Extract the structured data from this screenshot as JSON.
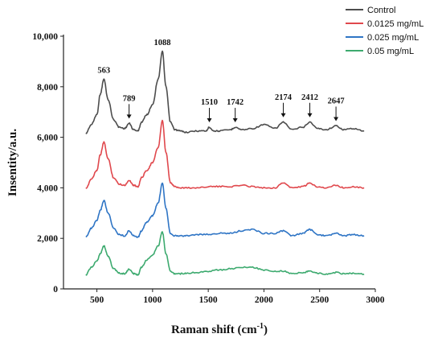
{
  "chart_data": {
    "type": "line",
    "title": "",
    "xlabel": "Raman shift (cm",
    "xlabel_sup": "-1",
    "xlabel_tail": ")",
    "ylabel": "Insentity/a.u.",
    "xlim": [
      200,
      3000
    ],
    "ylim": [
      0,
      10000
    ],
    "xticks": [
      500,
      1000,
      1500,
      2000,
      2500,
      3000
    ],
    "xtick_labels": [
      "500",
      "1000",
      "1500",
      "2000",
      "2500",
      "3000"
    ],
    "yticks": [
      0,
      2000,
      4000,
      6000,
      8000,
      10000
    ],
    "ytick_labels": [
      "0",
      "2,000",
      "4,000",
      "6,000",
      "8,000",
      "10,000"
    ],
    "grid": false,
    "legend_position": "top-right",
    "series": [
      {
        "name": "Control",
        "color": "#4d4d4d",
        "x": [
          400,
          450,
          500,
          530,
          563,
          600,
          650,
          700,
          750,
          789,
          830,
          870,
          900,
          950,
          1000,
          1050,
          1088,
          1120,
          1160,
          1200,
          1250,
          1300,
          1400,
          1480,
          1510,
          1550,
          1600,
          1700,
          1742,
          1800,
          1900,
          2000,
          2100,
          2174,
          2250,
          2350,
          2412,
          2480,
          2560,
          2647,
          2720,
          2800,
          2900
        ],
        "y": [
          6150,
          6500,
          6900,
          7700,
          8300,
          7500,
          6700,
          6400,
          6350,
          6550,
          6300,
          6250,
          6600,
          6900,
          7300,
          8300,
          9400,
          8000,
          6600,
          6300,
          6250,
          6200,
          6250,
          6250,
          6400,
          6250,
          6250,
          6300,
          6400,
          6300,
          6350,
          6500,
          6350,
          6600,
          6300,
          6400,
          6600,
          6350,
          6300,
          6450,
          6300,
          6350,
          6250
        ]
      },
      {
        "name": "0.0125 mg/mL",
        "color": "#e0484d",
        "x": [
          400,
          450,
          500,
          530,
          563,
          600,
          650,
          700,
          750,
          789,
          830,
          870,
          900,
          950,
          1000,
          1050,
          1088,
          1120,
          1160,
          1200,
          1250,
          1300,
          1400,
          1500,
          1600,
          1700,
          1800,
          1900,
          2000,
          2100,
          2174,
          2250,
          2350,
          2412,
          2480,
          2560,
          2647,
          2720,
          2800,
          2900
        ],
        "y": [
          3950,
          4350,
          4700,
          5300,
          5800,
          5150,
          4400,
          4150,
          4100,
          4300,
          4100,
          4050,
          4400,
          4700,
          5000,
          5600,
          6650,
          5400,
          4200,
          4050,
          4000,
          4000,
          4000,
          4050,
          4050,
          4050,
          4100,
          4050,
          4000,
          4000,
          4200,
          4000,
          4050,
          4180,
          4050,
          4000,
          4100,
          4000,
          4050,
          4000
        ]
      },
      {
        "name": "0.025 mg/mL",
        "color": "#2f75c5",
        "x": [
          400,
          450,
          500,
          530,
          563,
          600,
          650,
          700,
          750,
          789,
          830,
          870,
          900,
          950,
          1000,
          1050,
          1088,
          1120,
          1160,
          1200,
          1250,
          1300,
          1400,
          1500,
          1600,
          1700,
          1800,
          1900,
          2000,
          2100,
          2174,
          2250,
          2350,
          2412,
          2480,
          2560,
          2647,
          2720,
          2800,
          2900
        ],
        "y": [
          2050,
          2400,
          2700,
          3100,
          3500,
          3000,
          2400,
          2150,
          2100,
          2300,
          2100,
          2050,
          2300,
          2650,
          2900,
          3400,
          4200,
          3200,
          2200,
          2100,
          2100,
          2100,
          2150,
          2150,
          2200,
          2200,
          2300,
          2350,
          2200,
          2200,
          2300,
          2100,
          2200,
          2350,
          2150,
          2100,
          2200,
          2100,
          2150,
          2100
        ]
      },
      {
        "name": "0.05 mg/mL",
        "color": "#3daa6f",
        "x": [
          400,
          450,
          500,
          530,
          563,
          600,
          650,
          700,
          750,
          789,
          830,
          870,
          900,
          950,
          1000,
          1050,
          1088,
          1120,
          1160,
          1200,
          1250,
          1300,
          1400,
          1500,
          1600,
          1700,
          1800,
          1900,
          2000,
          2100,
          2174,
          2250,
          2350,
          2412,
          2480,
          2560,
          2647,
          2720,
          2800,
          2900
        ],
        "y": [
          550,
          850,
          1100,
          1400,
          1700,
          1300,
          800,
          620,
          600,
          780,
          600,
          560,
          850,
          1150,
          1350,
          1700,
          2250,
          1400,
          700,
          600,
          600,
          620,
          650,
          700,
          750,
          800,
          850,
          850,
          750,
          700,
          700,
          600,
          650,
          700,
          620,
          580,
          650,
          600,
          620,
          580
        ]
      }
    ],
    "annotations": [
      {
        "label": "563",
        "x": 563,
        "y": 8300,
        "arrow": false
      },
      {
        "label": "789",
        "x": 789,
        "y": 6550,
        "arrow": true
      },
      {
        "label": "1088",
        "x": 1088,
        "y": 9400,
        "arrow": false
      },
      {
        "label": "1510",
        "x": 1510,
        "y": 6400,
        "arrow": true
      },
      {
        "label": "1742",
        "x": 1742,
        "y": 6400,
        "arrow": true
      },
      {
        "label": "2174",
        "x": 2174,
        "y": 6600,
        "arrow": true
      },
      {
        "label": "2412",
        "x": 2412,
        "y": 6600,
        "arrow": true
      },
      {
        "label": "2647",
        "x": 2647,
        "y": 6450,
        "arrow": true
      }
    ]
  }
}
